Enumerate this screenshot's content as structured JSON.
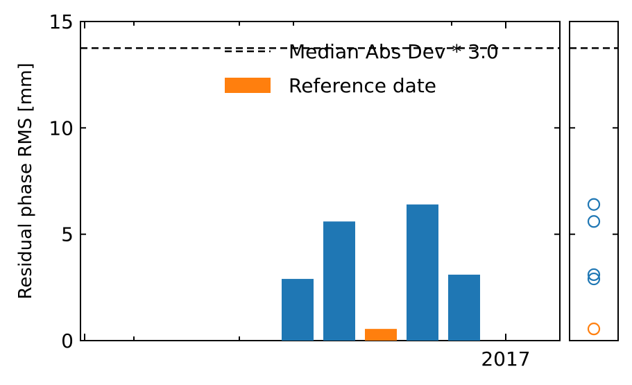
{
  "chart_data": [
    {
      "type": "bar",
      "ylabel": "Residual phase RMS [mm]",
      "ylim": [
        0,
        15
      ],
      "yticks": [
        "0",
        "5",
        "10",
        "15"
      ],
      "xtick_labels": [
        "2017"
      ],
      "bars": [
        {
          "value": 2.9,
          "color": "#1f77b4",
          "reference": false
        },
        {
          "value": 5.6,
          "color": "#1f77b4",
          "reference": false
        },
        {
          "value": 0.55,
          "color": "#ff7f0e",
          "reference": true
        },
        {
          "value": 6.4,
          "color": "#1f77b4",
          "reference": false
        },
        {
          "value": 3.1,
          "color": "#1f77b4",
          "reference": false
        }
      ],
      "threshold": {
        "value": 13.75,
        "label": "Median Abs Dev * 3.0",
        "style": "dashed",
        "color": "#000000"
      },
      "legend": {
        "placement": "top-right",
        "entries": [
          {
            "label": "Median Abs Dev * 3.0",
            "kind": "dashed-line",
            "color": "#000000"
          },
          {
            "label": "Reference date",
            "kind": "patch",
            "color": "#ff7f0e"
          }
        ]
      }
    },
    {
      "type": "scatter",
      "ylim": [
        0,
        15
      ],
      "points": [
        {
          "y": 6.4,
          "color": "#1f77b4"
        },
        {
          "y": 5.6,
          "color": "#1f77b4"
        },
        {
          "y": 3.1,
          "color": "#1f77b4"
        },
        {
          "y": 2.9,
          "color": "#1f77b4"
        },
        {
          "y": 0.55,
          "color": "#ff7f0e"
        }
      ],
      "threshold": {
        "value": 13.75,
        "style": "dashed"
      },
      "marker": "open-circle"
    }
  ]
}
